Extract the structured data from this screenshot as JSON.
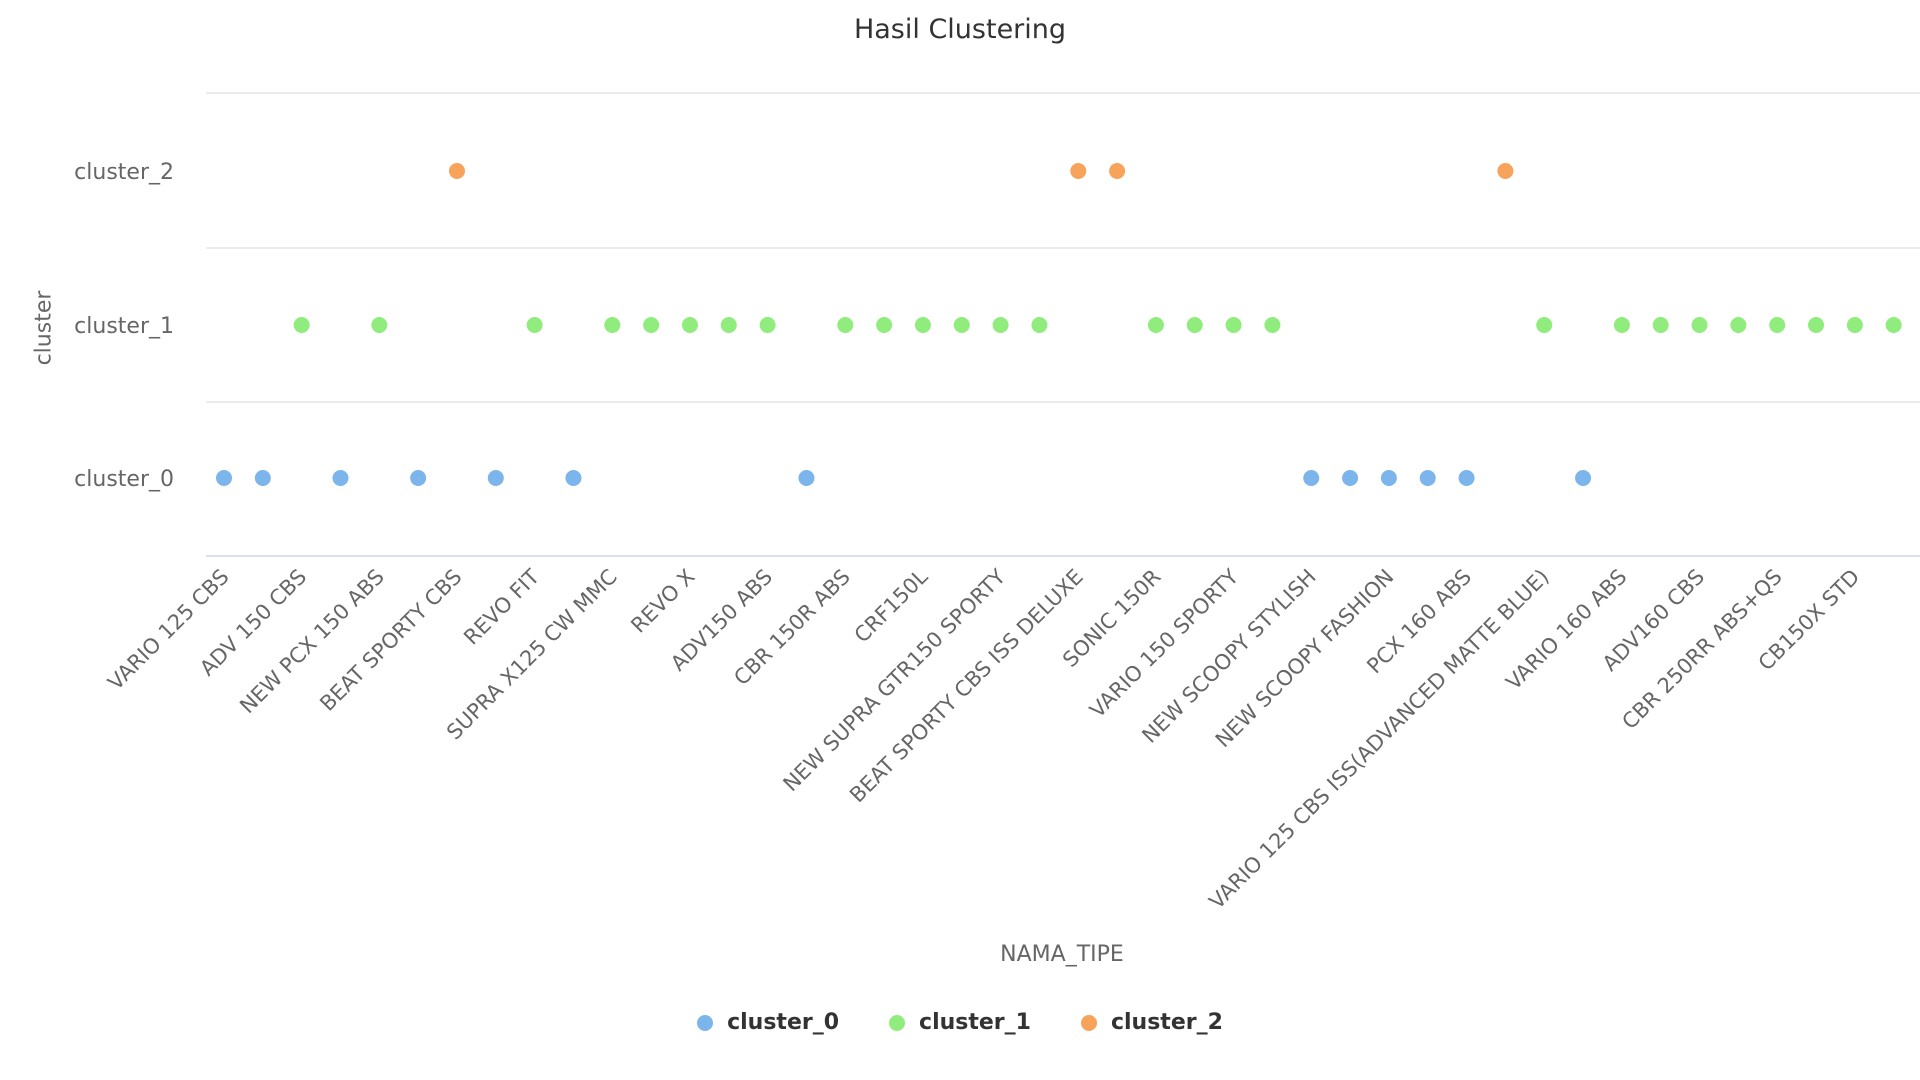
{
  "chart_data": {
    "type": "scatter",
    "title": "Hasil Clustering",
    "xlabel": "NAMA_TIPE",
    "ylabel": "cluster",
    "x_tick_labels": [
      "VARIO 125 CBS",
      "ADV 150 CBS",
      "NEW PCX 150 ABS",
      "BEAT SPORTY CBS",
      "REVO FIT",
      "SUPRA X125 CW MMC",
      "REVO X",
      "ADV150 ABS",
      "CBR 150R ABS",
      "CRF150L",
      "NEW SUPRA GTR150 SPORTY",
      "BEAT SPORTY CBS ISS DELUXE",
      "SONIC 150R",
      "VARIO 150 SPORTY",
      "NEW SCOOPY STYLISH",
      "NEW SCOOPY FASHION",
      "PCX 160 ABS",
      "VARIO 125 CBS ISS(ADVANCED MATTE BLUE)",
      "VARIO 160 ABS",
      "ADV160 CBS",
      "CBR 250RR ABS+QS",
      "CB150X STD"
    ],
    "y_categories": [
      "cluster_0",
      "cluster_1",
      "cluster_2"
    ],
    "x_range": [
      0,
      44
    ],
    "grid": true,
    "legend_position": "bottom-center",
    "series": [
      {
        "name": "cluster_0",
        "color": "#7cb5ec",
        "y": "cluster_0",
        "x": [
          0,
          1,
          3,
          5,
          7,
          9,
          15,
          28,
          29,
          30,
          31,
          32,
          35
        ]
      },
      {
        "name": "cluster_1",
        "color": "#90ed7d",
        "y": "cluster_1",
        "x": [
          2,
          4,
          8,
          10,
          11,
          12,
          13,
          14,
          16,
          17,
          18,
          19,
          20,
          21,
          24,
          25,
          26,
          27,
          34,
          36,
          37,
          38,
          39,
          40,
          41,
          42,
          43
        ]
      },
      {
        "name": "cluster_2",
        "color": "#f7a35c",
        "y": "cluster_2",
        "x": [
          6,
          22,
          23,
          33
        ]
      }
    ]
  }
}
